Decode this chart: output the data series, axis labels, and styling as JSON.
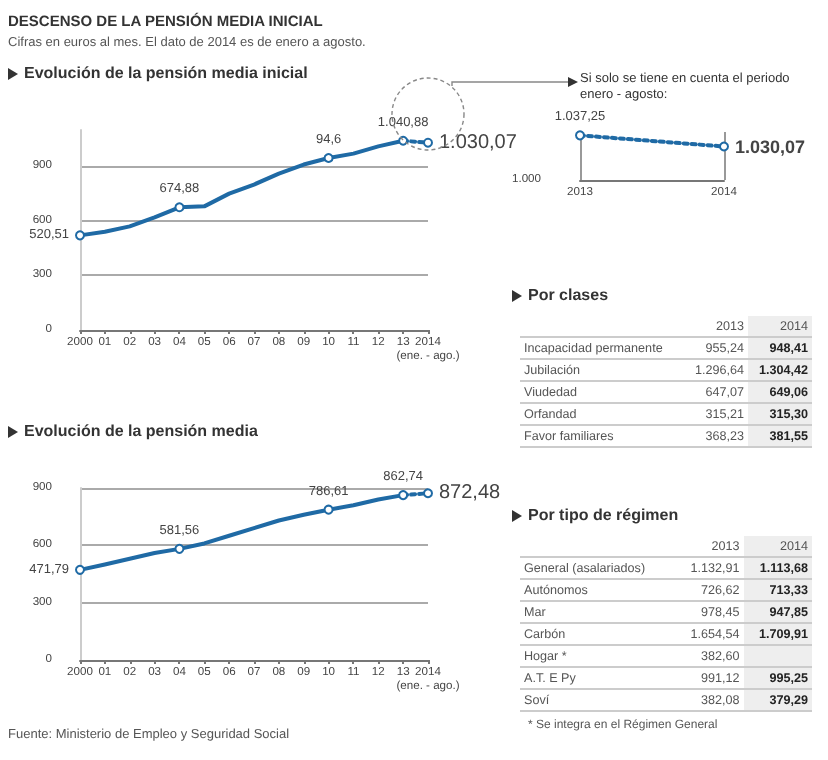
{
  "chart_data": [
    {
      "type": "line",
      "title": "DESCENSO DE LA PENSIÓN MEDIA INICIAL",
      "subtitle": "Cifras en euros al mes. El dato de 2014 es de enero a agosto.",
      "annotations": [
        "Evolución de la pensión media inicial",
        {
          "text": "94,6",
          "x": "10",
          "y": 946
        },
        "Fuente: Ministerio de Empleo y Seguridad Social"
      ],
      "categories": [
        "2000",
        "01",
        "02",
        "03",
        "04",
        "05",
        "06",
        "07",
        "08",
        "09",
        "10",
        "11",
        "12",
        "13",
        "2014\n(ene. - ago.)"
      ],
      "series": [
        {
          "color": "#1f6aa5",
          "line_style": "solid",
          "values": [
            520.51,
            540,
            570,
            620,
            674.88,
            680,
            750,
            800,
            860,
            910,
            946,
            970,
            1010,
            1040.88,
            null
          ],
          "value_labels": [
            "520,51",
            null,
            null,
            null,
            "674,88",
            null,
            null,
            null,
            null,
            null,
            null,
            null,
            null,
            "1.040,88",
            null
          ]
        },
        {
          "color": "#1f6aa5",
          "line_style": "dotted",
          "values": [
            null,
            null,
            null,
            null,
            null,
            null,
            null,
            null,
            null,
            null,
            null,
            null,
            null,
            1040.88,
            1030.07
          ],
          "value_labels": [
            null,
            null,
            null,
            null,
            null,
            null,
            null,
            null,
            null,
            null,
            null,
            null,
            null,
            null,
            "1.030,07"
          ],
          "marker": "circle"
        }
      ],
      "ylim": [
        0,
        1100
      ],
      "yticks": [
        0,
        300,
        600,
        900
      ],
      "grid": "y"
    },
    {
      "type": "line",
      "title": "Si solo se tiene en cuenta el periodo enero - agosto:",
      "annotations": [
        "1.000"
      ],
      "categories": [
        "2013",
        "2014"
      ],
      "series": [
        {
          "color": "#1f6aa5",
          "line_style": "dotted",
          "values": [
            1037.25,
            1030.07
          ],
          "value_labels": [
            "1.037,25",
            "1.030,07"
          ]
        }
      ],
      "marker": "circle"
    },
    {
      "type": "other",
      "title": "Por clases",
      "categories": [
        "2013",
        "2014"
      ],
      "y_categories": [
        "Incapacidad permanente",
        "Jubilación",
        "Viudedad",
        "Orfandad",
        "Favor familiares"
      ],
      "cell_labels": [
        [
          "955,24",
          "948,41"
        ],
        [
          "1.296,64",
          "1.304,42"
        ],
        [
          "647,07",
          "649,06"
        ],
        [
          "315,21",
          "315,30"
        ],
        [
          "368,23",
          "381,55"
        ]
      ]
    },
    {
      "type": "line",
      "title": "Evolución de la pensión media",
      "categories": [
        "2000",
        "01",
        "02",
        "03",
        "04",
        "05",
        "06",
        "07",
        "08",
        "09",
        "10",
        "11",
        "12",
        "13",
        "2014\n(ene. - ago.)"
      ],
      "series": [
        {
          "color": "#1f6aa5",
          "line_style": "solid",
          "values": [
            471.79,
            500,
            530,
            560,
            581.56,
            610,
            650,
            690,
            730,
            760,
            786.61,
            810,
            840,
            862.74,
            null
          ],
          "value_labels": [
            "471,79",
            null,
            null,
            null,
            "581,56",
            null,
            null,
            null,
            null,
            null,
            "786,61",
            null,
            null,
            "862,74",
            null
          ]
        },
        {
          "color": "#1f6aa5",
          "line_style": "dotted",
          "values": [
            null,
            null,
            null,
            null,
            null,
            null,
            null,
            null,
            null,
            null,
            null,
            null,
            null,
            862.74,
            872.48
          ],
          "value_labels": [
            null,
            null,
            null,
            null,
            null,
            null,
            null,
            null,
            null,
            null,
            null,
            null,
            null,
            null,
            "872,48"
          ],
          "marker": "circle"
        }
      ],
      "ylim": [
        0,
        900
      ],
      "yticks": [
        0,
        300,
        600,
        900
      ],
      "grid": "y"
    },
    {
      "type": "other",
      "title": "Por tipo de régimen",
      "annotations": [
        "* Se integra en el Régimen General"
      ],
      "categories": [
        "2013",
        "2014"
      ],
      "y_categories": [
        "General (asalariados)",
        "Autónomos",
        "Mar",
        "Carbón",
        "Hogar *",
        "A.T. E Py",
        "Soví"
      ],
      "cell_labels": [
        [
          "1.132,91",
          "1.113,68"
        ],
        [
          "726,62",
          "713,33"
        ],
        [
          "978,45",
          "947,85"
        ],
        [
          "1.654,54",
          "1.709,91"
        ],
        [
          "382,60",
          null
        ],
        [
          "991,12",
          "995,25"
        ],
        [
          "382,08",
          "379,29"
        ]
      ]
    }
  ]
}
